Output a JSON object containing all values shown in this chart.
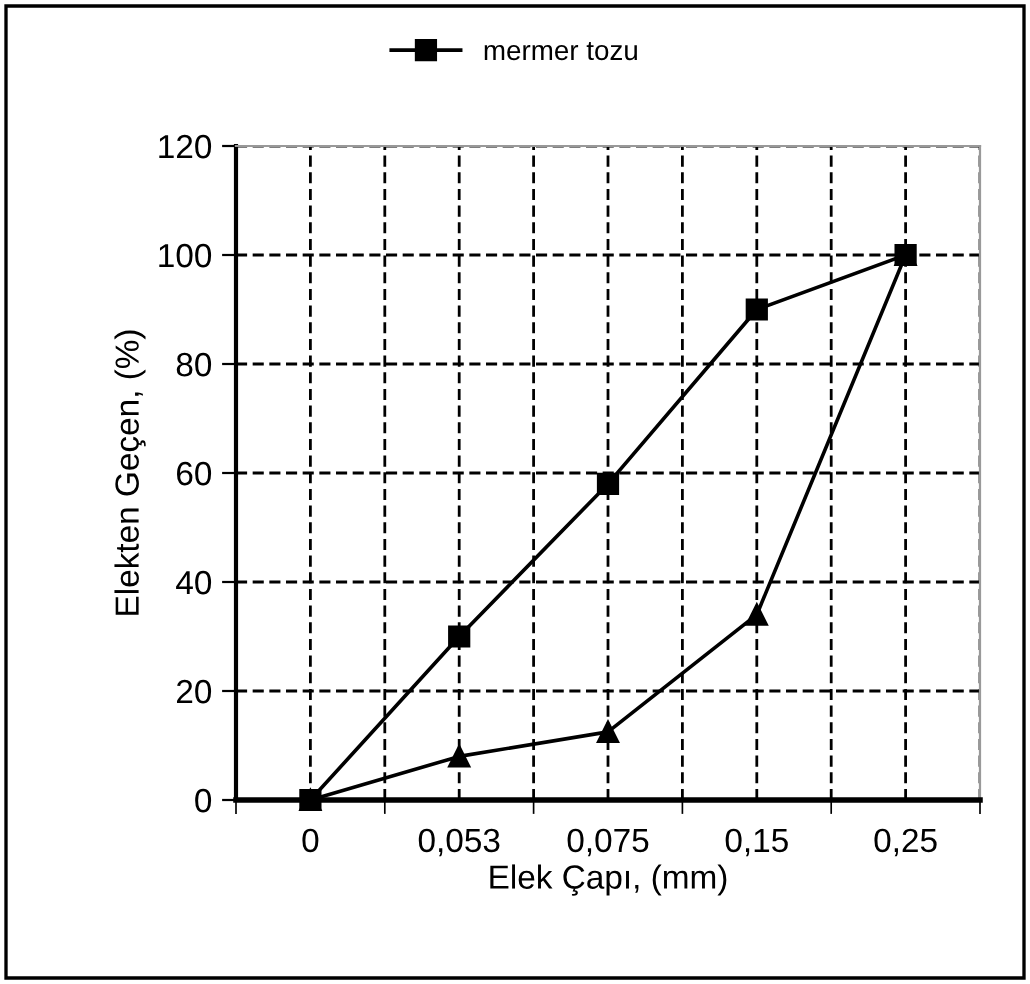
{
  "chart_data": {
    "type": "line",
    "xlabel": "Elek Çapı, (mm)",
    "ylabel": "Elekten Geçen, (%)",
    "categories": [
      "0",
      "0,053",
      "0,075",
      "0,15",
      "0,25"
    ],
    "series": [
      {
        "name": "mermer tozu",
        "color": "#000000",
        "marker": "square",
        "values": [
          0,
          30,
          58,
          90,
          100
        ]
      },
      {
        "color": "#000000",
        "marker": "triangle",
        "values": [
          0,
          8,
          12.5,
          34,
          100
        ]
      }
    ],
    "ylim": [
      0,
      120
    ],
    "yticks": [
      0,
      20,
      40,
      60,
      80,
      100,
      120
    ],
    "grid": true,
    "legend": "top",
    "line_style": "solid"
  }
}
